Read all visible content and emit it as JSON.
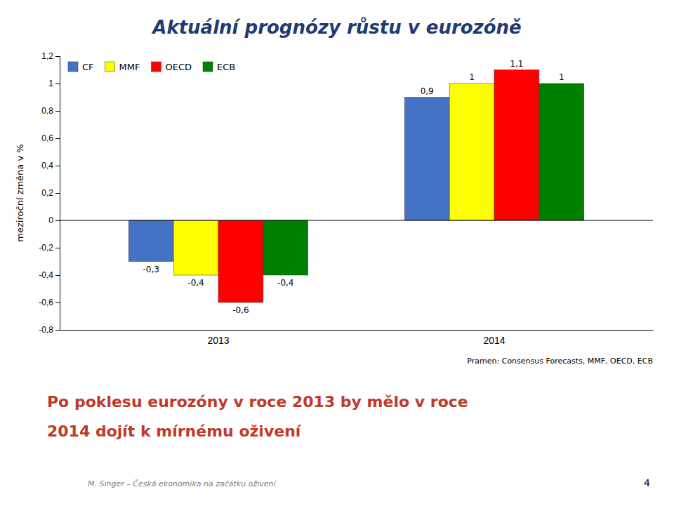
{
  "chart_data": {
    "type": "bar",
    "title": "Aktuální prognózy růstu v eurozóně",
    "subtitle": [
      "Po poklesu eurozóny v roce 2013 by mělo v roce",
      "2014 dojít k mírnému oživení"
    ],
    "y_label": "meziroční změna v %",
    "categories": [
      "2013",
      "2014"
    ],
    "series": [
      {
        "name": "CF",
        "color": "#4472C4",
        "values": [
          -0.3,
          0.9
        ],
        "value_labels": [
          "-0,3",
          "0,9"
        ]
      },
      {
        "name": "MMF",
        "color": "#FFFF00",
        "values": [
          -0.4,
          1.0
        ],
        "value_labels": [
          "-0,4",
          "1"
        ]
      },
      {
        "name": "OECD",
        "color": "#FF0000",
        "values": [
          -0.6,
          1.1
        ],
        "value_labels": [
          "-0,6",
          "1,1"
        ]
      },
      {
        "name": "ECB",
        "color": "#008000",
        "values": [
          -0.4,
          1.0
        ],
        "value_labels": [
          "-0,4",
          "1"
        ]
      }
    ],
    "ylim": [
      -0.8,
      1.2
    ],
    "yticks": [
      {
        "value": -0.8,
        "label": "-0,8"
      },
      {
        "value": -0.6,
        "label": "-0,6"
      },
      {
        "value": -0.4,
        "label": "-0,4"
      },
      {
        "value": -0.2,
        "label": "-0,2"
      },
      0,
      {
        "value": 0.2,
        "label": "0,2"
      },
      {
        "value": 0.4,
        "label": "0,4"
      },
      {
        "value": 0.6,
        "label": "0,6"
      },
      {
        "value": 0.8,
        "label": "0,8"
      },
      1,
      {
        "value": 1.2,
        "label": "1,2"
      }
    ],
    "grid": false,
    "legend": "top-left",
    "data_labels": true,
    "annotations": [
      "Pramen: Consensus Forecasts, MMF, OECD, ECB",
      "M. Singer – Česká ekonomika na začátku oživení",
      "4"
    ]
  }
}
